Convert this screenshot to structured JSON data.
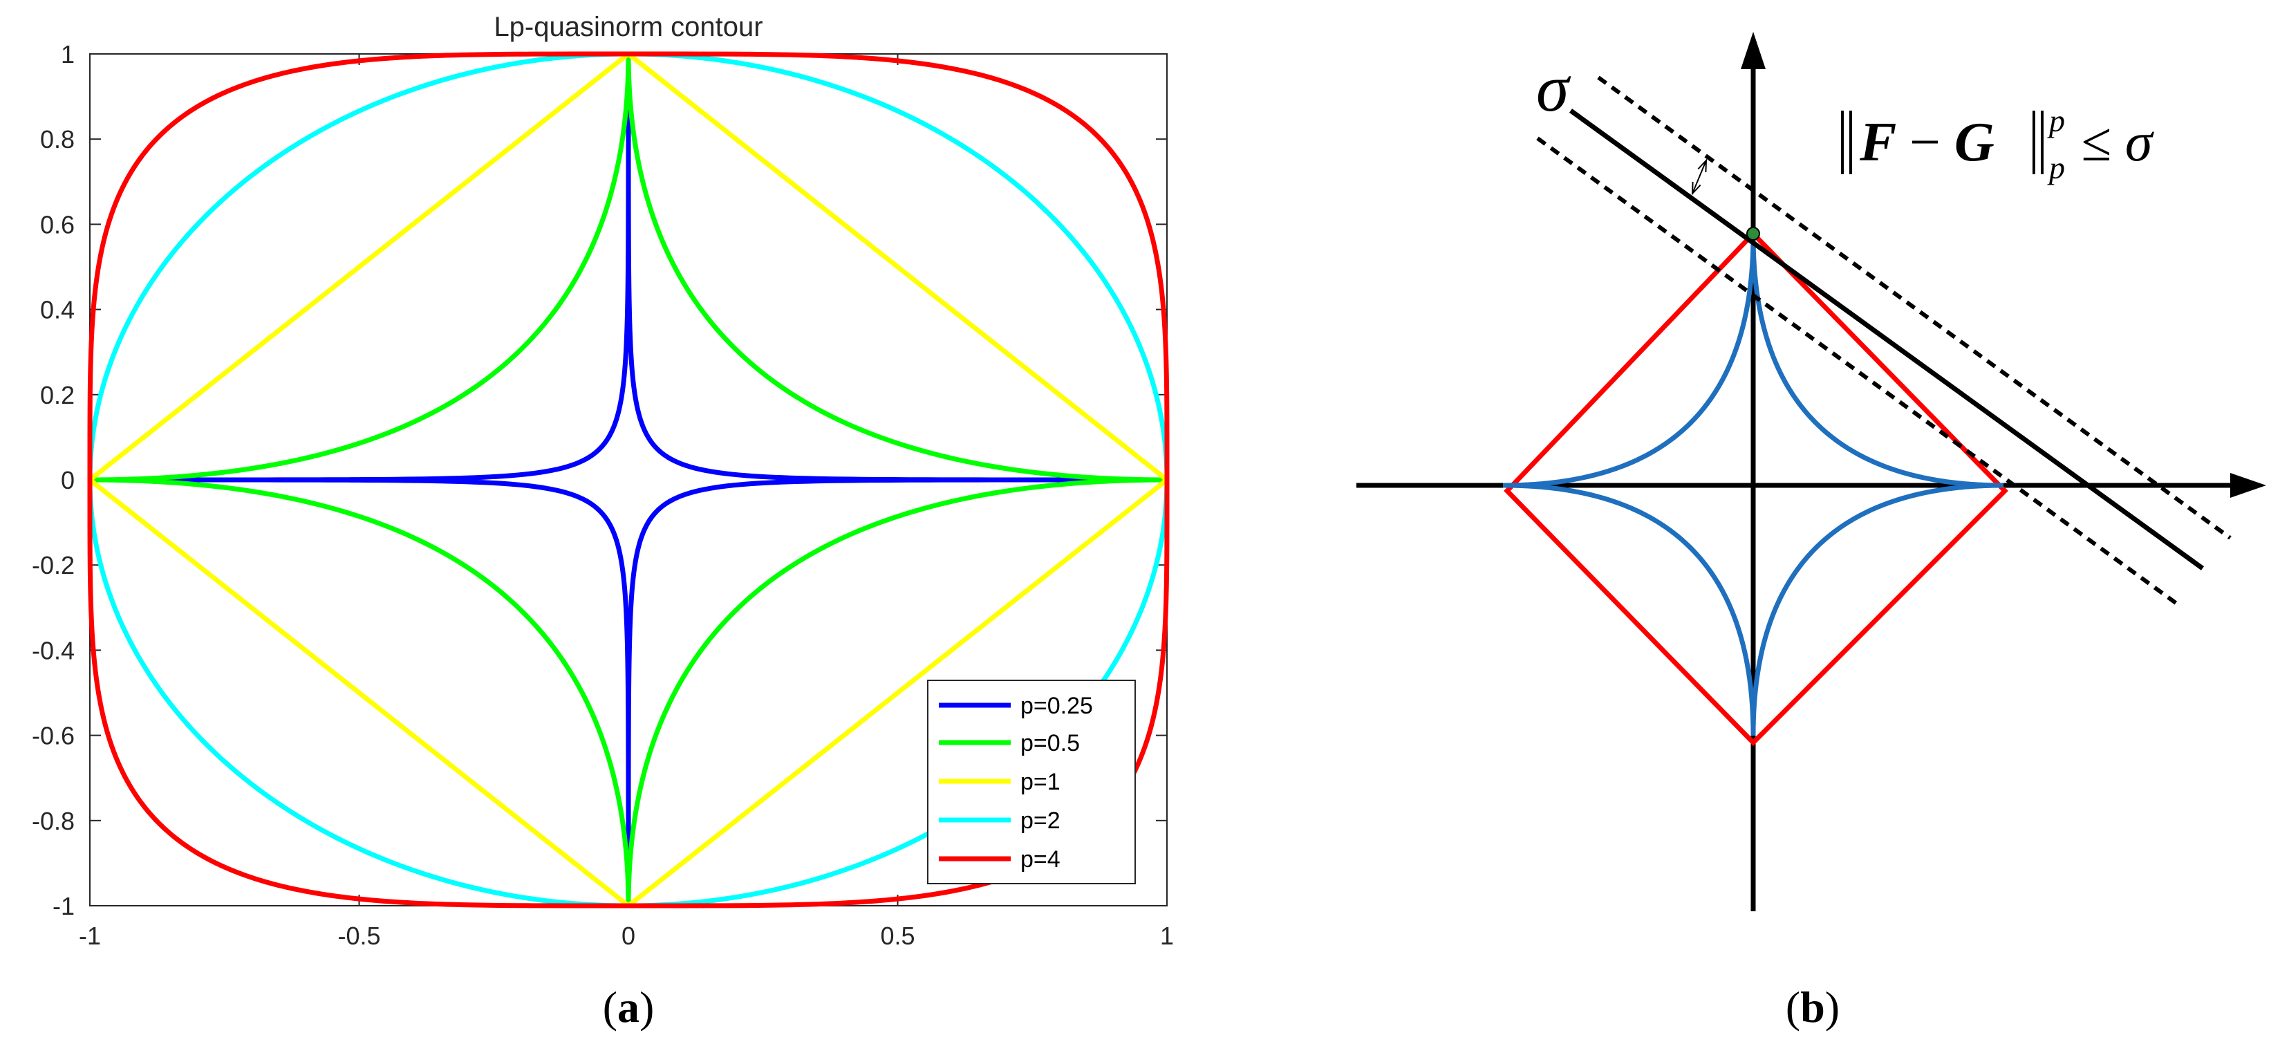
{
  "chart_data": [
    {
      "type": "line",
      "title": "Lp-quasinorm contour",
      "xlabel": "",
      "ylabel": "",
      "xlim": [
        -1,
        1
      ],
      "ylim": [
        -1,
        1
      ],
      "xticks": [
        "-1",
        "-0.5",
        "0",
        "0.5",
        "1"
      ],
      "yticks": [
        "1",
        "0.8",
        "0.6",
        "0.4",
        "0.2",
        "0",
        "-0.2",
        "-0.4",
        "-0.6",
        "-0.8",
        "-1"
      ],
      "grid": false,
      "legend_position": "bottom-right",
      "caption": "a",
      "series": [
        {
          "name": "p=0.25",
          "p": 0.25,
          "color": "#0000ff"
        },
        {
          "name": "p=0.5",
          "p": 0.5,
          "color": "#00ff00"
        },
        {
          "name": "p=1",
          "p": 1,
          "color": "#ffff00"
        },
        {
          "name": "p=2",
          "p": 2,
          "color": "#00ffff"
        },
        {
          "name": "p=4",
          "p": 4,
          "color": "#ff0000"
        }
      ]
    },
    {
      "type": "diagram",
      "caption": "b",
      "sigma_label": "σ",
      "formula": {
        "lhs": "F",
        "minus": "−",
        "rhs": "G",
        "sub": "p",
        "sup": "p",
        "rel": "≤ σ"
      },
      "colors": {
        "diamond": "#ff0000",
        "astroid": "#1f6fbf",
        "line": "#000000",
        "point": "#2e8b3a"
      }
    }
  ]
}
